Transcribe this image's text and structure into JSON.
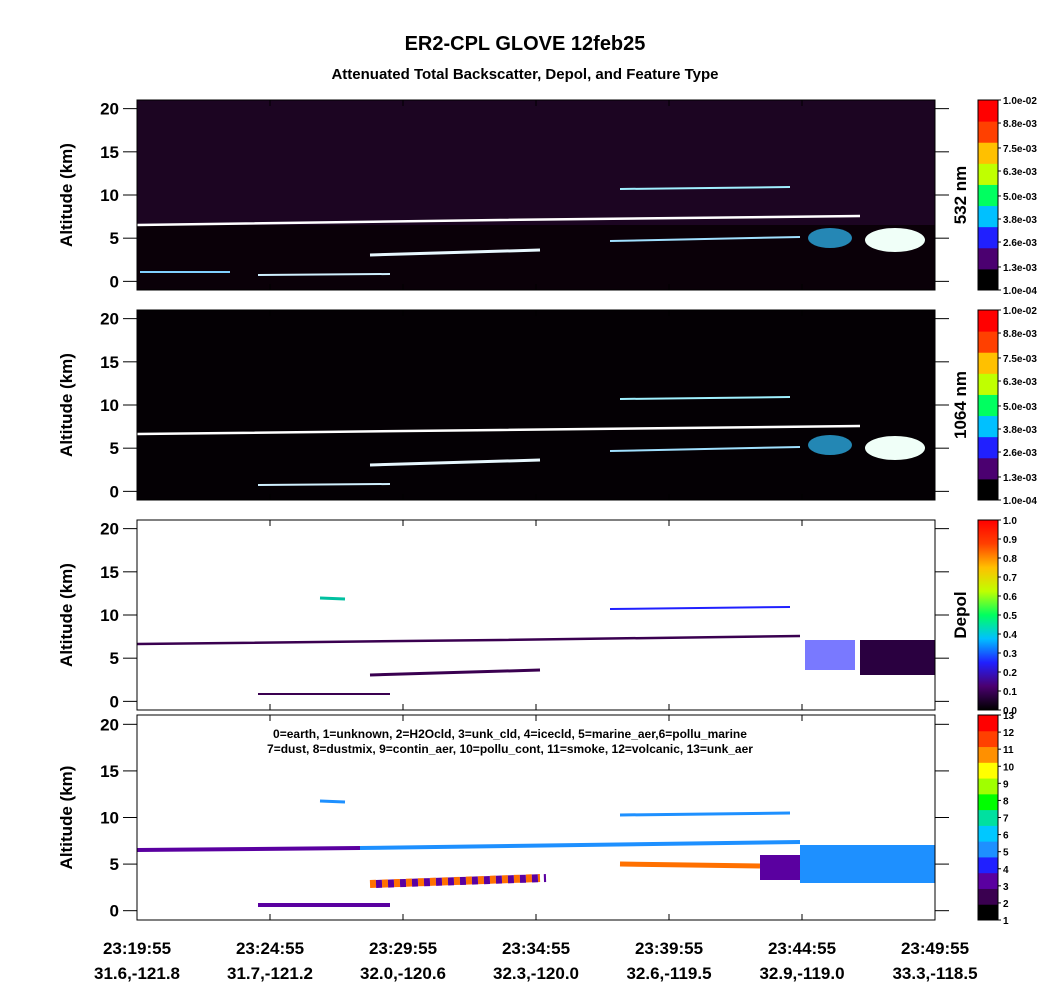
{
  "title": "ER2-CPL GLOVE 12feb25",
  "subtitle": "Attenuated Total Backscatter, Depol, and Feature Type",
  "x_ticks": [
    {
      "time": "23:19:55",
      "position": "31.6,-121.8"
    },
    {
      "time": "23:24:55",
      "position": "31.7,-121.2"
    },
    {
      "time": "23:29:55",
      "position": "32.0,-120.6"
    },
    {
      "time": "23:34:55",
      "position": "32.3,-120.0"
    },
    {
      "time": "23:39:55",
      "position": "32.6,-119.5"
    },
    {
      "time": "23:44:55",
      "position": "32.9,-119.0"
    },
    {
      "time": "23:49:55",
      "position": "33.3,-118.5"
    }
  ],
  "chart_data": [
    {
      "type": "heatmap",
      "y_label": "Altitude (km)",
      "ylim": [
        -1,
        21
      ],
      "yticks": [
        0,
        5,
        10,
        15,
        20
      ],
      "colorbar": {
        "label": "532 nm",
        "clim": [
          0.0001,
          0.01
        ],
        "colors": [
          "#000000",
          "#4b0070",
          "#2020ff",
          "#00c0ff",
          "#00ff60",
          "#c0ff00",
          "#ffc000",
          "#ff4000",
          "#ff0000"
        ],
        "ticks": [
          {
            "value": 0.0001,
            "label": "1.0e-04"
          },
          {
            "value": 0.0013,
            "label": "1.3e-03"
          },
          {
            "value": 0.0026,
            "label": "2.6e-03"
          },
          {
            "value": 0.0038,
            "label": "3.8e-03"
          },
          {
            "value": 0.005,
            "label": "5.0e-03"
          },
          {
            "value": 0.0063,
            "label": "6.3e-03"
          },
          {
            "value": 0.0075,
            "label": "7.5e-03"
          },
          {
            "value": 0.0088,
            "label": "8.8e-03"
          },
          {
            "value": 0.01,
            "label": "1.0e-02"
          }
        ]
      }
    },
    {
      "type": "heatmap",
      "y_label": "Altitude (km)",
      "ylim": [
        -1,
        21
      ],
      "yticks": [
        0,
        5,
        10,
        15,
        20
      ],
      "colorbar": {
        "label": "1064 nm",
        "clim": [
          0.0001,
          0.01
        ],
        "colors": [
          "#000000",
          "#4b0070",
          "#2020ff",
          "#00c0ff",
          "#00ff60",
          "#c0ff00",
          "#ffc000",
          "#ff4000",
          "#ff0000"
        ],
        "ticks": [
          {
            "value": 0.0001,
            "label": "1.0e-04"
          },
          {
            "value": 0.0013,
            "label": "1.3e-03"
          },
          {
            "value": 0.0026,
            "label": "2.6e-03"
          },
          {
            "value": 0.0038,
            "label": "3.8e-03"
          },
          {
            "value": 0.005,
            "label": "5.0e-03"
          },
          {
            "value": 0.0063,
            "label": "6.3e-03"
          },
          {
            "value": 0.0075,
            "label": "7.5e-03"
          },
          {
            "value": 0.0088,
            "label": "8.8e-03"
          },
          {
            "value": 0.01,
            "label": "1.0e-02"
          }
        ]
      }
    },
    {
      "type": "heatmap",
      "y_label": "Altitude (km)",
      "ylim": [
        -1,
        21
      ],
      "yticks": [
        0,
        5,
        10,
        15,
        20
      ],
      "colorbar": {
        "label": "Depol",
        "clim": [
          0,
          1
        ],
        "colors": [
          "#000000",
          "#4b0070",
          "#2020ff",
          "#00c0ff",
          "#00ff60",
          "#c0ff00",
          "#ffc000",
          "#ff4000",
          "#ff0000"
        ],
        "ticks": [
          {
            "value": 0,
            "label": "0.0"
          },
          0.1,
          0.2,
          0.3,
          0.4,
          0.5,
          0.6,
          0.7,
          0.8,
          0.9,
          {
            "value": 1,
            "label": "1.0"
          }
        ]
      }
    },
    {
      "type": "heatmap",
      "y_label": "Altitude (km)",
      "ylim": [
        -1,
        21
      ],
      "yticks": [
        0,
        5,
        10,
        15,
        20
      ],
      "annotations": [
        "0=earth, 1=unknown, 2=H2Ocld, 3=unk_cld, 4=icecld, 5=marine_aer,6=pollu_marine",
        "7=dust, 8=dustmix, 9=contin_aer, 10=pollu_cont, 11=smoke, 12=volcanic, 13=unk_aer"
      ],
      "colorbar": {
        "clim": [
          1,
          13
        ],
        "colors": [
          "#000000",
          "#3a0050",
          "#5a00a0",
          "#2020ff",
          "#1e90ff",
          "#00c8ff",
          "#00e0a0",
          "#00ff00",
          "#a0ff00",
          "#ffff00",
          "#ff9000",
          "#ff4000",
          "#ff0000"
        ],
        "ticks": [
          1,
          2,
          3,
          4,
          5,
          6,
          7,
          8,
          9,
          10,
          11,
          12,
          13
        ]
      }
    }
  ]
}
